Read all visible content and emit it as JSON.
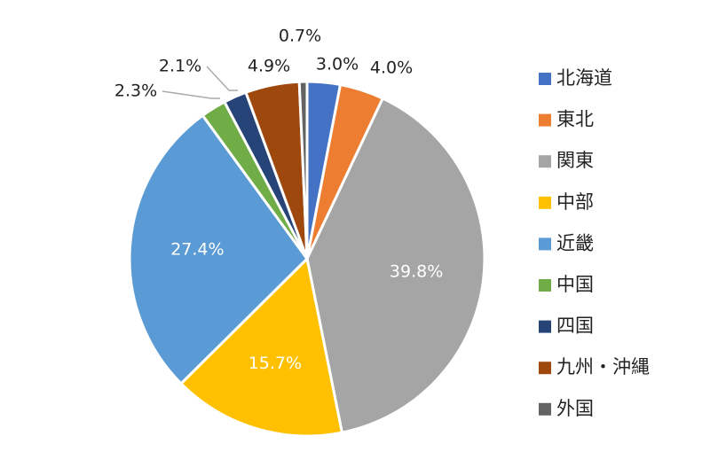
{
  "chart_data": {
    "type": "pie",
    "categories": [
      "北海道",
      "東北",
      "関東",
      "中部",
      "近畿",
      "中国",
      "四国",
      "九州・沖縄",
      "外国"
    ],
    "values": [
      3.0,
      4.0,
      39.8,
      15.7,
      27.4,
      2.3,
      2.1,
      4.9,
      0.7
    ],
    "value_labels": [
      "3.0%",
      "4.0%",
      "39.8%",
      "15.7%",
      "27.4%",
      "2.3%",
      "2.1%",
      "4.9%",
      "0.7%"
    ],
    "colors": [
      "#4472c4",
      "#ed7d31",
      "#a5a5a5",
      "#ffc000",
      "#5b9bd5",
      "#70ad47",
      "#264478",
      "#9e480e",
      "#636363"
    ],
    "legend": "right"
  }
}
